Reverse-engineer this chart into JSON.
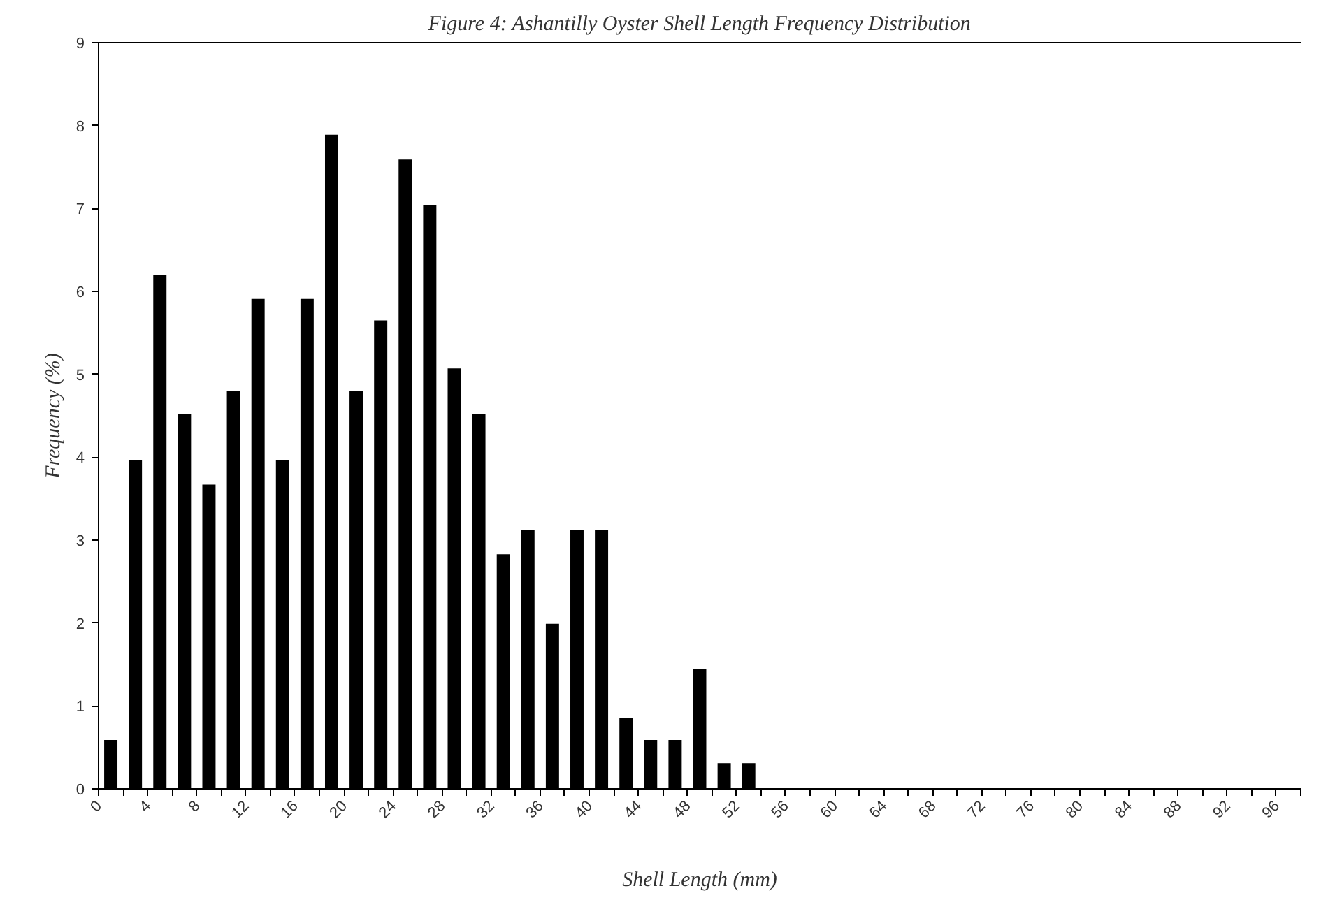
{
  "chart_data": {
    "type": "histogram",
    "title": "Figure 4: Ashantilly Oyster Shell Length Frequency Distribution",
    "xlabel": "Shell Length (mm)",
    "ylabel": "Frequency (%)",
    "bins": [
      0,
      2,
      4,
      6,
      8,
      10,
      12,
      14,
      16,
      18,
      20,
      22,
      24,
      26,
      28,
      30,
      32,
      34,
      36,
      38,
      40,
      42,
      44,
      46,
      48,
      50,
      52,
      54,
      56,
      58,
      60,
      62,
      64,
      66,
      68,
      70,
      72,
      74,
      76,
      78,
      80,
      82,
      84,
      86,
      88,
      90,
      92,
      94,
      96,
      98
    ],
    "values": [
      0.59,
      3.96,
      6.2,
      4.52,
      3.67,
      4.8,
      5.91,
      3.96,
      5.91,
      7.89,
      4.8,
      5.65,
      7.59,
      7.04,
      5.07,
      4.52,
      2.83,
      3.12,
      1.99,
      3.12,
      3.12,
      0.86,
      0.59,
      0.59,
      1.44,
      0.31,
      0.31,
      0,
      0,
      0,
      0,
      0,
      0,
      0,
      0,
      0,
      0,
      0,
      0,
      0,
      0,
      0,
      0,
      0,
      0,
      0,
      0,
      0,
      0
    ],
    "color": "#000000",
    "xlim": [
      0,
      98
    ],
    "xticks": [
      0,
      {
        "value": 2,
        "label": null
      },
      4,
      {
        "value": 6,
        "label": null
      },
      8,
      {
        "value": 10,
        "label": null
      },
      12,
      {
        "value": 14,
        "label": null
      },
      16,
      {
        "value": 18,
        "label": null
      },
      20,
      {
        "value": 22,
        "label": null
      },
      24,
      {
        "value": 26,
        "label": null
      },
      28,
      {
        "value": 30,
        "label": null
      },
      32,
      {
        "value": 34,
        "label": null
      },
      36,
      {
        "value": 38,
        "label": null
      },
      40,
      {
        "value": 42,
        "label": null
      },
      44,
      {
        "value": 46,
        "label": null
      },
      48,
      {
        "value": 50,
        "label": null
      },
      52,
      {
        "value": 54,
        "label": null
      },
      56,
      {
        "value": 58,
        "label": null
      },
      60,
      {
        "value": 62,
        "label": null
      },
      64,
      {
        "value": 66,
        "label": null
      },
      68,
      {
        "value": 70,
        "label": null
      },
      72,
      {
        "value": 74,
        "label": null
      },
      76,
      {
        "value": 78,
        "label": null
      },
      80,
      {
        "value": 82,
        "label": null
      },
      84,
      {
        "value": 86,
        "label": null
      },
      88,
      {
        "value": 90,
        "label": null
      },
      92,
      {
        "value": 94,
        "label": null
      },
      96,
      {
        "value": 98,
        "label": null
      }
    ],
    "ylim": [
      0,
      9
    ],
    "yticks": [
      0,
      1,
      2,
      3,
      4,
      5,
      6,
      7,
      8,
      9
    ],
    "grid": false
  }
}
